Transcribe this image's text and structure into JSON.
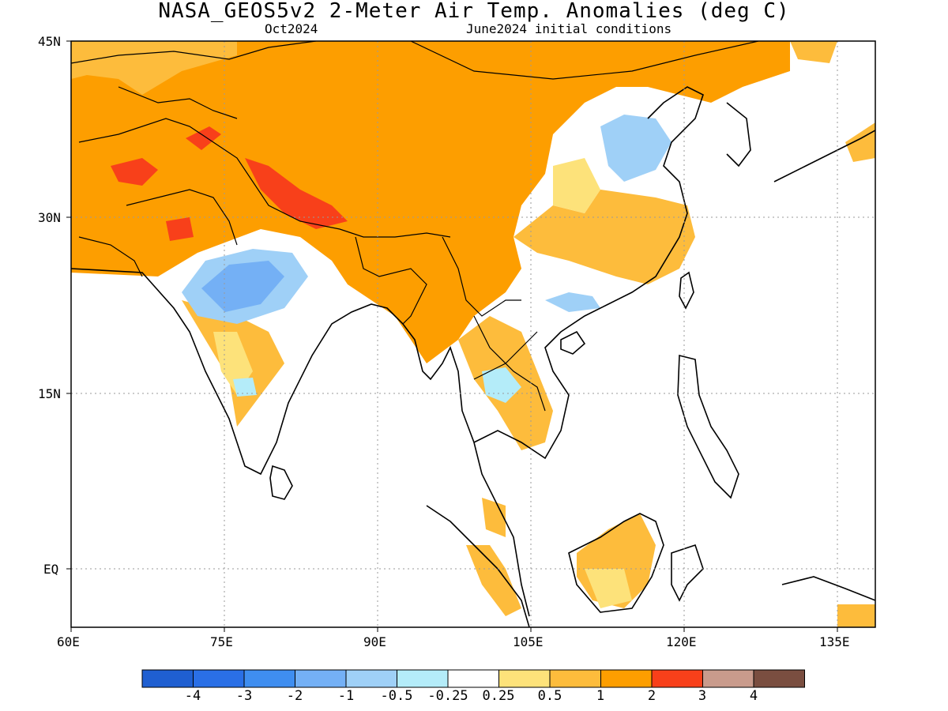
{
  "title": "NASA_GEOS5v2 2-Meter Air Temp. Anomalies (deg C)",
  "subtitle_left": "Oct2024",
  "subtitle_right": "June2024 initial conditions",
  "axes": {
    "x_ticks": [
      "60E",
      "75E",
      "90E",
      "105E",
      "120E",
      "135E"
    ],
    "y_ticks": [
      "45N",
      "30N",
      "15N",
      "EQ"
    ]
  },
  "colorbar": {
    "labels": [
      "-4",
      "-3",
      "-2",
      "-1",
      "-0.5",
      "-0.25",
      "0.25",
      "0.5",
      "1",
      "2",
      "3",
      "4"
    ],
    "colors": [
      "#1f5fd1",
      "#2a6fe6",
      "#3f8ef0",
      "#74b0f5",
      "#9fd0f7",
      "#b4ecf9",
      "#ffffff",
      "#fde27a",
      "#fdbc3c",
      "#fd9e00",
      "#f8401a",
      "#c99b8c",
      "#7a4e40"
    ]
  }
}
